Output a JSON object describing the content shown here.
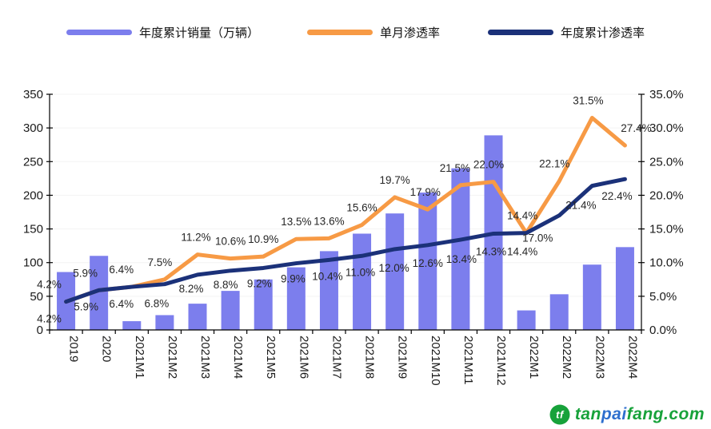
{
  "chart_data": {
    "type": "combo-bar-line",
    "categories": [
      "2019",
      "2020",
      "2021M1",
      "2021M2",
      "2021M3",
      "2021M4",
      "2021M5",
      "2021M6",
      "2021M7",
      "2021M8",
      "2021M9",
      "2021M10",
      "2021M11",
      "2021M12",
      "2022M1",
      "2022M2",
      "2022M3",
      "2022M4"
    ],
    "series": [
      {
        "name": "年度累计销量（万辆）",
        "type": "bar",
        "axis": "left",
        "color": "#7c7eed",
        "values": [
          86,
          110,
          13,
          22,
          39,
          58,
          75,
          93,
          117,
          143,
          173,
          204,
          240,
          289,
          29,
          53,
          97,
          123
        ]
      },
      {
        "name": "单月渗透率",
        "type": "line",
        "axis": "right",
        "color": "#f79a45",
        "values": [
          4.2,
          5.9,
          6.4,
          7.5,
          11.2,
          10.6,
          10.9,
          13.5,
          13.6,
          15.6,
          19.7,
          17.9,
          21.5,
          22.0,
          14.4,
          22.1,
          31.5,
          27.4
        ],
        "labels": [
          "4.2%",
          "5.9%",
          "6.4%",
          "7.5%",
          "11.2%",
          "10.6%",
          "10.9%",
          "13.5%",
          "13.6%",
          "15.6%",
          "19.7%",
          "17.9%",
          "21.5%",
          "22.0%",
          "14.4%",
          "22.1%",
          "31.5%",
          "27.4%"
        ]
      },
      {
        "name": "年度累计渗透率",
        "type": "line",
        "axis": "right",
        "color": "#1b3179",
        "values": [
          4.2,
          5.9,
          6.4,
          6.8,
          8.2,
          8.8,
          9.2,
          9.9,
          10.4,
          11.0,
          12.0,
          12.6,
          13.4,
          14.3,
          14.4,
          17.0,
          21.4,
          22.4
        ],
        "labels": [
          "4.2%",
          "5.9%",
          "6.4%",
          "6.8%",
          "8.2%",
          "8.8%",
          "9.2%",
          "9.9%",
          "10.4%",
          "11.0%",
          "12.0%",
          "12.6%",
          "13.4%",
          "14.3%",
          "14.4%",
          "17.0%",
          "21.4%",
          "22.4%"
        ]
      }
    ],
    "left_axis": {
      "min": 0,
      "max": 350,
      "step": 50,
      "tick_labels": [
        "350",
        "300",
        "250",
        "200",
        "150",
        "100",
        "50",
        "0"
      ]
    },
    "right_axis": {
      "min": 0,
      "max": 35,
      "step": 5,
      "tick_labels": [
        "35.0%",
        "30.0%",
        "25.0%",
        "20.0%",
        "15.0%",
        "10.0%",
        "5.0%",
        "0.0%"
      ]
    },
    "grid": "horizontal-faint",
    "legend_position": "top"
  },
  "legend": {
    "items": [
      {
        "label": "年度累计销量（万辆）",
        "color": "#7c7eed"
      },
      {
        "label": "单月渗透率",
        "color": "#f79a45"
      },
      {
        "label": "年度累计渗透率",
        "color": "#1b3179"
      }
    ]
  },
  "watermark": {
    "logo_color": "#17a23a",
    "logo_glyph": "tf",
    "parts": [
      {
        "text": "tan",
        "color": "#17a23a"
      },
      {
        "text": "pai",
        "color": "#2e6fce"
      },
      {
        "text": "fang.com",
        "color": "#17a23a"
      }
    ]
  }
}
